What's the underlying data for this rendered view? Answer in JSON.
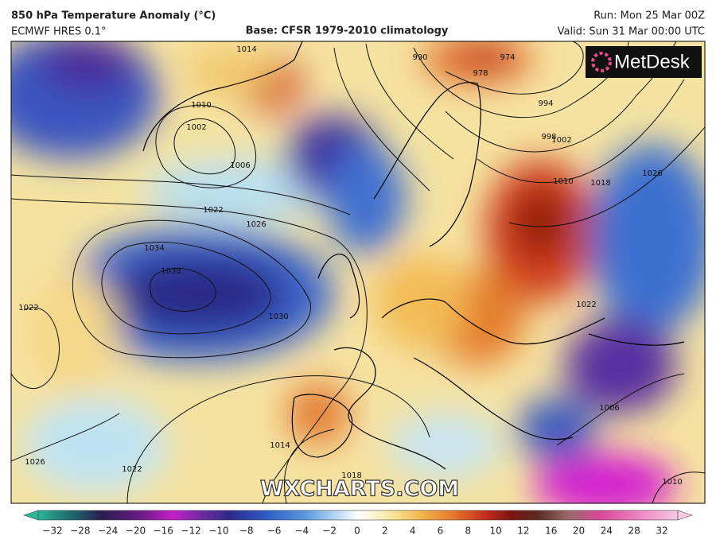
{
  "header": {
    "title": "850 hPa Temperature Anomaly (°C)",
    "model": "ECMWF HRES 0.1°",
    "base": "Base: CFSR 1979-2010 climatology",
    "run": "Run: Mon 25 Mar 00Z",
    "valid": "Valid: Sun 31 Mar 00:00 UTC"
  },
  "logo": "MetDesk",
  "watermark": "WXCHARTS.COM",
  "isobar_labels": [
    "1014",
    "990",
    "974",
    "978",
    "994",
    "998",
    "1002",
    "1010",
    "1002",
    "1006",
    "1022",
    "1026",
    "1034",
    "1038",
    "1030",
    "1022",
    "1026",
    "1022",
    "1018",
    "1014",
    "1010",
    "1018",
    "1026",
    "1022",
    "1006",
    "1010"
  ],
  "colorbar": {
    "labels": [
      "−32",
      "−28",
      "−24",
      "−20",
      "−16",
      "−12",
      "−10",
      "−8",
      "−6",
      "−4",
      "−2",
      "0",
      "2",
      "4",
      "6",
      "8",
      "10",
      "12",
      "16",
      "20",
      "24",
      "28",
      "32"
    ]
  }
}
